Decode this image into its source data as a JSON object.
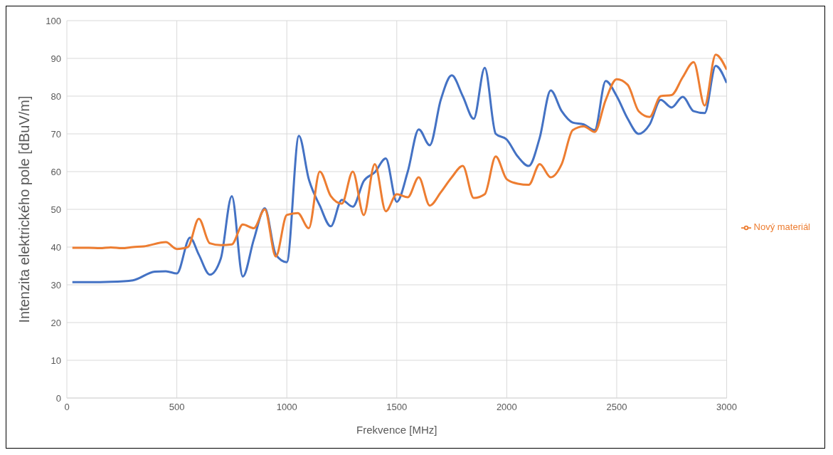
{
  "chart_data": {
    "type": "line",
    "xlabel": "Frekvence [MHz]",
    "ylabel": "Intenzita elektrického pole [dBuV/m]",
    "xlim": [
      0,
      3000
    ],
    "xticks": [
      0,
      500,
      1000,
      1500,
      2000,
      2500,
      3000
    ],
    "ylim": [
      0,
      100
    ],
    "yticks": [
      0,
      10,
      20,
      30,
      40,
      50,
      60,
      70,
      80,
      90,
      100
    ],
    "grid": true,
    "legend": "right",
    "marker": "none",
    "line_style": "solid",
    "series": [
      {
        "color": "#4472c4",
        "x": [
          25,
          100,
          200,
          300,
          400,
          450,
          500,
          560,
          600,
          650,
          700,
          750,
          800,
          850,
          900,
          950,
          1000,
          1055,
          1100,
          1150,
          1200,
          1250,
          1300,
          1350,
          1400,
          1450,
          1500,
          1550,
          1600,
          1650,
          1700,
          1750,
          1800,
          1850,
          1900,
          1950,
          2000,
          2050,
          2100,
          2150,
          2200,
          2250,
          2300,
          2350,
          2400,
          2450,
          2500,
          2550,
          2600,
          2650,
          2700,
          2750,
          2800,
          2850,
          2900,
          2950,
          3000
        ],
        "values": [
          30.7,
          30.7,
          30.8,
          31.2,
          33.5,
          33.6,
          33,
          42.5,
          38,
          32.7,
          37,
          53.5,
          32.2,
          42,
          50.3,
          38,
          36,
          69.5,
          58,
          51,
          45.5,
          52.5,
          50.7,
          57.5,
          59.8,
          63.5,
          52,
          60,
          71.2,
          67,
          79,
          85.5,
          80,
          74,
          87.5,
          70,
          68.5,
          64,
          61.5,
          69,
          81.5,
          76,
          73,
          72.5,
          71,
          84,
          80,
          74,
          70,
          72.5,
          79,
          77,
          79.8,
          76,
          75.5,
          88,
          83.5
        ]
      },
      {
        "name": "Nový materiál",
        "color": "#ed7d31",
        "x": [
          25,
          100,
          150,
          200,
          250,
          300,
          350,
          450,
          500,
          550,
          600,
          650,
          700,
          750,
          800,
          850,
          900,
          950,
          1000,
          1050,
          1100,
          1150,
          1200,
          1250,
          1300,
          1350,
          1400,
          1450,
          1500,
          1550,
          1600,
          1650,
          1700,
          1750,
          1800,
          1850,
          1900,
          1950,
          2000,
          2050,
          2100,
          2150,
          2200,
          2250,
          2300,
          2350,
          2400,
          2450,
          2500,
          2550,
          2600,
          2650,
          2700,
          2750,
          2800,
          2850,
          2900,
          2950,
          3000
        ],
        "values": [
          39.8,
          39.8,
          39.7,
          39.9,
          39.7,
          40,
          40.2,
          41.3,
          39.5,
          40,
          47.5,
          41,
          40.5,
          40.7,
          46,
          45,
          50,
          37.5,
          48.5,
          49,
          45,
          60,
          53.5,
          51.5,
          60,
          48.5,
          62,
          49.5,
          54,
          53.2,
          58.5,
          51,
          54.5,
          58.5,
          61.5,
          53,
          54,
          64,
          58,
          56.8,
          56.5,
          62,
          58.5,
          62,
          71,
          72,
          70.5,
          79,
          84.5,
          83,
          76,
          74.5,
          80,
          80.3,
          85,
          89,
          77.5,
          91,
          87
        ]
      }
    ]
  }
}
